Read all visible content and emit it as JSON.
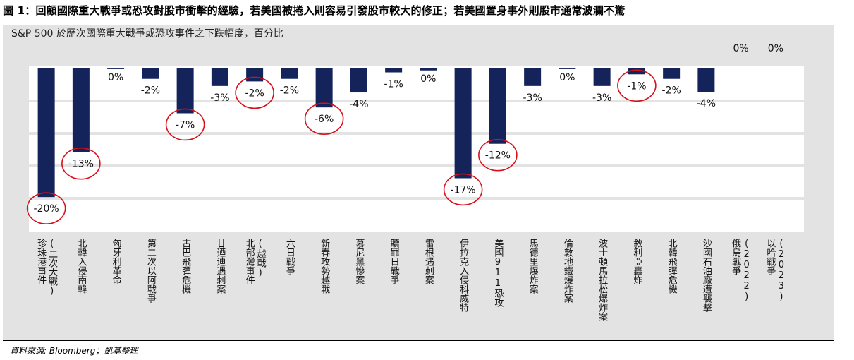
{
  "figure_title": "圖 1：回顧國際重大戰爭或恐攻對股市衝擊的經驗，若美國被捲入則容易引發股市較大的修正；若美國置身事外則股市通常波瀾不驚",
  "source_note": "資料來源: Bloomberg；凱基整理",
  "colors": {
    "bar": "#14235a",
    "panel": "#e3e3e3",
    "plot": "#ffffff",
    "highlight": "#d8101a"
  },
  "chart_data": {
    "type": "bar",
    "title": "S&P 500 於歷次國際重大戰爭或恐攻事件之下跌幅度，百分比",
    "xlabel": "",
    "ylabel": "",
    "ylim": [
      -20,
      0
    ],
    "grid": true,
    "legend": "none",
    "categories": [
      "珍珠港事件(二次大戰)",
      "北韓入侵南韓",
      "匈牙利革命",
      "第二次以阿戰爭",
      "古巴飛彈危機",
      "甘迺迪遇刺案",
      "北部灣事件(越戰)",
      "六日戰爭",
      "新春攻勢越戰",
      "慕尼黑慘案",
      "贖罪日戰爭",
      "雷根遇刺案",
      "伊拉克入侵科威特",
      "美國911恐攻",
      "馬德里爆炸案",
      "倫敦地鐵爆炸案",
      "波士頓馬拉松爆炸案",
      "敘利亞轟炸",
      "北韓飛彈危機",
      "沙國石油廠遭襲擊",
      "俄烏戰爭(2022)",
      "以哈戰爭(2023)"
    ],
    "category_lines": [
      [
        "珍珠港事件",
        "(二次大戰)"
      ],
      [
        "北韓入侵南韓"
      ],
      [
        "匈牙利革命"
      ],
      [
        "第二次以阿戰爭"
      ],
      [
        "古巴飛彈危機"
      ],
      [
        "甘迺迪遇刺案"
      ],
      [
        "北部灣事件",
        "(越戰)"
      ],
      [
        "六日戰爭"
      ],
      [
        "新春攻勢越戰"
      ],
      [
        "慕尼黑慘案"
      ],
      [
        "贖罪日戰爭"
      ],
      [
        "雷根遇刺案"
      ],
      [
        "伊拉克入侵科威特"
      ],
      [
        "美國911恐攻"
      ],
      [
        "馬德里爆炸案"
      ],
      [
        "倫敦地鐵爆炸案"
      ],
      [
        "波士頓馬拉松爆炸案"
      ],
      [
        "敘利亞轟炸"
      ],
      [
        "北韓飛彈危機"
      ],
      [
        "沙國石油廠遭襲擊"
      ],
      [
        "俄烏戰爭",
        "(2022)"
      ],
      [
        "以哈戰爭",
        "(2023)"
      ]
    ],
    "values": [
      -19.8,
      -12.9,
      -0.1,
      -1.6,
      -6.9,
      -2.7,
      -2.0,
      -1.6,
      -6.0,
      -3.7,
      -0.6,
      -0.3,
      -16.9,
      -11.6,
      -2.7,
      -0.1,
      -2.7,
      -0.9,
      -1.6,
      -3.6,
      0,
      0
    ],
    "data_labels": [
      "-20%",
      "-13%",
      "0%",
      "-2%",
      "-7%",
      "-3%",
      "-2%",
      "-2%",
      "-6%",
      "-4%",
      "-1%",
      "0%",
      "-17%",
      "-12%",
      "-3%",
      "0%",
      "-3%",
      "-1%",
      "-2%",
      "-4%",
      "0%",
      "0%"
    ],
    "circled": [
      0,
      1,
      4,
      6,
      8,
      12,
      13,
      17
    ]
  }
}
